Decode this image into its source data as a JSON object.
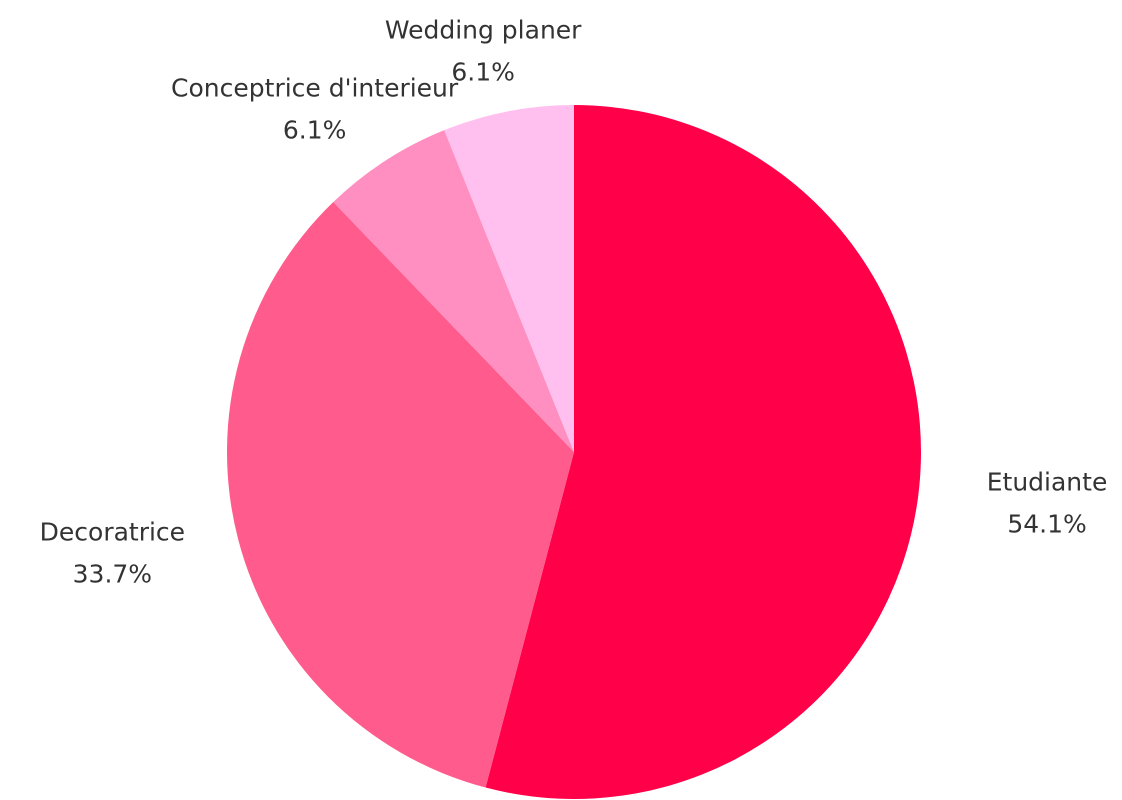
{
  "chart_data": {
    "type": "pie",
    "categories": [
      "Etudiante",
      "Decoratrice",
      "Conceptrice d'interieur",
      "Wedding planer"
    ],
    "values": [
      54.1,
      33.7,
      6.1,
      6.1
    ],
    "value_labels": [
      "54.1%",
      "33.7%",
      "6.1%",
      "6.1%"
    ],
    "colors": [
      "#ff0049",
      "#ff5b8c",
      "#ff8fc0",
      "#ffc0ef"
    ]
  }
}
